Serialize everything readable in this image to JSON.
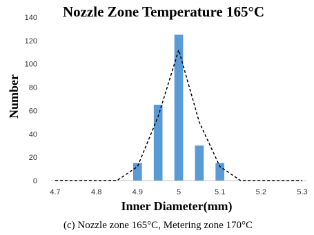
{
  "chart_data": {
    "type": "bar",
    "title": "Nozzle Zone Temperature 165°C",
    "xlabel": "Inner Diameter(mm)",
    "ylabel": "Number",
    "caption": "(c) Nozzle zone 165°C, Metering zone 170°C",
    "x": [
      4.7,
      4.8,
      4.9,
      4.95,
      5.0,
      5.05,
      5.1,
      5.2,
      5.3
    ],
    "xticks": [
      "4.7",
      "4.8",
      "4.9",
      "5",
      "5.1",
      "5.2",
      "5.3"
    ],
    "xlim": [
      4.7,
      5.3
    ],
    "ylim": [
      0,
      140
    ],
    "yticks": [
      0,
      20,
      40,
      60,
      80,
      100,
      120,
      140
    ],
    "grid": false,
    "bar_color": "#5b9bd5",
    "series": [
      {
        "type": "bar",
        "x": [
          4.9,
          4.95,
          5.0,
          5.05,
          5.1
        ],
        "values": [
          15,
          65,
          125,
          30,
          15
        ]
      },
      {
        "type": "line",
        "style": "dashed",
        "color": "#000000",
        "x": [
          4.7,
          4.85,
          4.9,
          4.95,
          5.0,
          5.05,
          5.1,
          5.15,
          5.3
        ],
        "values": [
          0,
          0,
          12,
          55,
          112,
          50,
          12,
          0,
          0
        ]
      }
    ]
  }
}
